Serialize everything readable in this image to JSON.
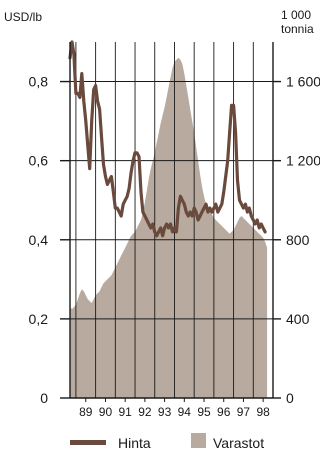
{
  "chart_data": {
    "type": "line+area",
    "left_axis_unit": "USD/lb",
    "right_axis_unit_line1": "1 000",
    "right_axis_unit_line2": "tonnia",
    "left_ticks": [
      "0",
      "0,2",
      "0,4",
      "0,6",
      "0,8"
    ],
    "left_tick_values": [
      0,
      0.2,
      0.4,
      0.6,
      0.8
    ],
    "right_ticks": [
      "0",
      "400",
      "800",
      "1 200",
      "1 600"
    ],
    "right_tick_values": [
      0,
      400,
      800,
      1200,
      1600
    ],
    "left_range": [
      0,
      0.9
    ],
    "right_range": [
      0,
      1800
    ],
    "year_labels": [
      "89",
      "90",
      "91",
      "92",
      "93",
      "94",
      "95",
      "96",
      "97",
      "98"
    ],
    "x_range": [
      1988.7,
      1999.0
    ],
    "grid": "vertical lines at year boundaries, horizontal lines at left-axis ticks",
    "legend": "bottom",
    "series": [
      {
        "name": "Hinta",
        "kind": "line",
        "axis": "left",
        "color": "#6b4a3e",
        "x": [
          1988.7,
          1988.8,
          1988.9,
          1989.0,
          1989.1,
          1989.2,
          1989.3,
          1989.4,
          1989.5,
          1989.6,
          1989.7,
          1989.8,
          1989.9,
          1990.0,
          1990.1,
          1990.2,
          1990.3,
          1990.4,
          1990.5,
          1990.6,
          1990.7,
          1990.8,
          1990.9,
          1991.0,
          1991.1,
          1991.2,
          1991.3,
          1991.4,
          1991.5,
          1991.6,
          1991.7,
          1991.8,
          1991.9,
          1992.0,
          1992.1,
          1992.2,
          1992.3,
          1992.4,
          1992.5,
          1992.6,
          1992.7,
          1992.8,
          1992.9,
          1993.0,
          1993.1,
          1993.2,
          1993.3,
          1993.4,
          1993.5,
          1993.6,
          1993.7,
          1993.8,
          1993.9,
          1994.0,
          1994.1,
          1994.2,
          1994.3,
          1994.4,
          1994.5,
          1994.6,
          1994.7,
          1994.8,
          1994.9,
          1995.0,
          1995.1,
          1995.2,
          1995.3,
          1995.4,
          1995.5,
          1995.6,
          1995.7,
          1995.8,
          1995.9,
          1996.0,
          1996.1,
          1996.2,
          1996.3,
          1996.4,
          1996.5,
          1996.6,
          1996.7,
          1996.8,
          1996.9,
          1997.0,
          1997.1,
          1997.2,
          1997.3,
          1997.4,
          1997.5,
          1997.6,
          1997.7,
          1997.8,
          1997.9,
          1998.0,
          1998.1,
          1998.2,
          1998.3,
          1998.4,
          1998.5,
          1998.6
        ],
        "y": [
          0.86,
          0.9,
          0.87,
          0.77,
          0.77,
          0.76,
          0.82,
          0.75,
          0.7,
          0.64,
          0.58,
          0.7,
          0.78,
          0.79,
          0.75,
          0.73,
          0.66,
          0.59,
          0.56,
          0.54,
          0.55,
          0.56,
          0.52,
          0.48,
          0.48,
          0.47,
          0.46,
          0.49,
          0.5,
          0.51,
          0.53,
          0.57,
          0.6,
          0.62,
          0.62,
          0.61,
          0.52,
          0.47,
          0.46,
          0.45,
          0.44,
          0.43,
          0.44,
          0.42,
          0.41,
          0.42,
          0.43,
          0.41,
          0.43,
          0.44,
          0.43,
          0.44,
          0.42,
          0.43,
          0.42,
          0.48,
          0.51,
          0.5,
          0.49,
          0.47,
          0.46,
          0.47,
          0.46,
          0.48,
          0.47,
          0.45,
          0.46,
          0.47,
          0.48,
          0.49,
          0.47,
          0.48,
          0.47,
          0.48,
          0.49,
          0.47,
          0.48,
          0.49,
          0.52,
          0.56,
          0.6,
          0.67,
          0.74,
          0.74,
          0.67,
          0.55,
          0.5,
          0.49,
          0.48,
          0.49,
          0.47,
          0.48,
          0.46,
          0.45,
          0.44,
          0.45,
          0.43,
          0.44,
          0.43,
          0.42
        ]
      },
      {
        "name": "Varastot",
        "kind": "area",
        "axis": "right",
        "color": "#b8aa9e",
        "x": [
          1988.7,
          1988.8,
          1988.9,
          1989.0,
          1989.1,
          1989.2,
          1989.3,
          1989.4,
          1989.5,
          1989.6,
          1989.7,
          1989.8,
          1989.9,
          1990.0,
          1990.1,
          1990.2,
          1990.3,
          1990.4,
          1990.5,
          1990.6,
          1990.7,
          1990.8,
          1990.9,
          1991.0,
          1991.1,
          1991.2,
          1991.3,
          1991.4,
          1991.5,
          1991.6,
          1991.7,
          1991.8,
          1991.9,
          1992.0,
          1992.1,
          1992.2,
          1992.3,
          1992.4,
          1992.5,
          1992.6,
          1992.7,
          1992.8,
          1992.9,
          1993.0,
          1993.1,
          1993.2,
          1993.3,
          1993.4,
          1993.5,
          1993.6,
          1993.7,
          1993.8,
          1993.9,
          1994.0,
          1994.1,
          1994.2,
          1994.3,
          1994.4,
          1994.5,
          1994.6,
          1994.7,
          1994.8,
          1994.9,
          1995.0,
          1995.1,
          1995.2,
          1995.3,
          1995.4,
          1995.5,
          1995.6,
          1995.7,
          1995.8,
          1995.9,
          1996.0,
          1996.1,
          1996.2,
          1996.3,
          1996.4,
          1996.5,
          1996.6,
          1996.7,
          1996.8,
          1996.9,
          1997.0,
          1997.1,
          1997.2,
          1997.3,
          1997.4,
          1997.5,
          1997.6,
          1997.7,
          1997.8,
          1997.9,
          1998.0,
          1998.1,
          1998.2,
          1998.3,
          1998.4,
          1998.5,
          1998.6,
          1998.7
        ],
        "y": [
          460,
          450,
          460,
          470,
          500,
          530,
          550,
          540,
          520,
          500,
          490,
          480,
          500,
          520,
          530,
          540,
          560,
          580,
          590,
          600,
          610,
          620,
          640,
          660,
          680,
          700,
          720,
          740,
          760,
          780,
          800,
          820,
          830,
          840,
          860,
          880,
          900,
          940,
          990,
          1050,
          1110,
          1160,
          1200,
          1240,
          1290,
          1340,
          1390,
          1430,
          1470,
          1520,
          1570,
          1620,
          1670,
          1700,
          1710,
          1720,
          1710,
          1690,
          1640,
          1580,
          1520,
          1460,
          1400,
          1340,
          1270,
          1200,
          1130,
          1070,
          1020,
          980,
          960,
          940,
          930,
          910,
          900,
          890,
          880,
          870,
          860,
          850,
          840,
          830,
          840,
          850,
          870,
          890,
          910,
          920,
          910,
          900,
          890,
          880,
          870,
          860,
          850,
          840,
          830,
          820,
          810,
          790,
          760
        ]
      }
    ]
  },
  "legend": {
    "line_label": "Hinta",
    "area_label": "Varastot"
  }
}
